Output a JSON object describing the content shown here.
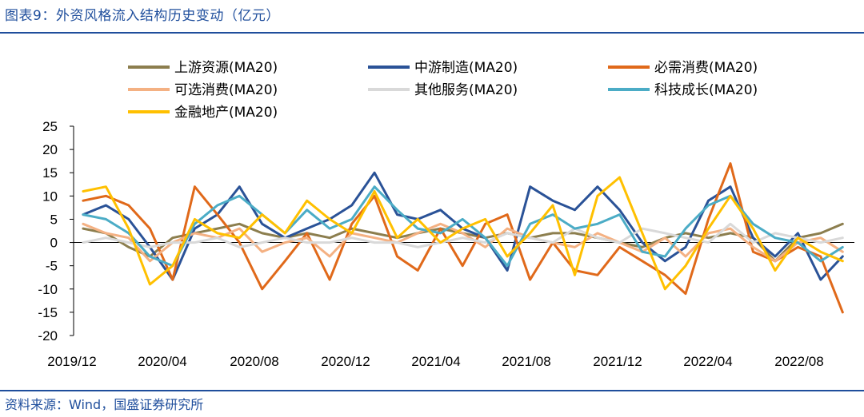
{
  "figure_title": "图表9：外资风格流入结构历史变动（亿元）",
  "source": "资料来源：Wind，国盛证券研究所",
  "chart_data": {
    "type": "line",
    "title": "",
    "xlabel": "",
    "ylabel": "",
    "ylim": [
      -20,
      25
    ],
    "yticks": [
      25,
      20,
      15,
      10,
      5,
      0,
      -5,
      -10,
      -15,
      -20
    ],
    "xticks": [
      "2019/12",
      "2020/04",
      "2020/08",
      "2020/12",
      "2021/04",
      "2021/08",
      "2021/12",
      "2022/04",
      "2022/08"
    ],
    "grid": false,
    "legend_position": "top",
    "x_range": [
      "2019-12-02",
      "2022-10-31"
    ],
    "x": [
      "2019-12",
      "2020-01",
      "2020-02",
      "2020-03",
      "2020-04",
      "2020-05",
      "2020-06",
      "2020-07",
      "2020-08",
      "2020-09",
      "2020-10",
      "2020-11",
      "2020-12",
      "2021-01",
      "2021-02",
      "2021-03",
      "2021-04",
      "2021-05",
      "2021-06",
      "2021-07",
      "2021-08",
      "2021-09",
      "2021-10",
      "2021-11",
      "2021-12",
      "2022-01",
      "2022-02",
      "2022-03",
      "2022-04",
      "2022-05",
      "2022-06",
      "2022-07",
      "2022-08",
      "2022-09",
      "2022-10"
    ],
    "series": [
      {
        "name": "上游资源(MA20)",
        "color": "#8c7e4e",
        "values": [
          3,
          2,
          -1,
          -3,
          1,
          2,
          3,
          4,
          2,
          1,
          2,
          1,
          3,
          2,
          1,
          2,
          3,
          2,
          1,
          2,
          1,
          2,
          2,
          1,
          0,
          -1,
          1,
          2,
          1,
          2,
          1,
          -4,
          1,
          2,
          4
        ]
      },
      {
        "name": "中游制造(MA20)",
        "color": "#2a5297",
        "values": [
          6,
          8,
          5,
          -1,
          -8,
          3,
          6,
          12,
          4,
          1,
          3,
          5,
          8,
          15,
          6,
          5,
          7,
          3,
          1,
          -6,
          12,
          9,
          7,
          12,
          7,
          0,
          -4,
          -1,
          9,
          12,
          1,
          -3,
          2,
          -8,
          -3
        ]
      },
      {
        "name": "必需消费(MA20)",
        "color": "#e0691a",
        "values": [
          9,
          10,
          8,
          3,
          -8,
          12,
          6,
          0,
          -10,
          -4,
          2,
          -8,
          4,
          10,
          -3,
          -6,
          3,
          -5,
          4,
          6,
          -8,
          0,
          -6,
          -7,
          -1,
          -4,
          -7,
          -11,
          5,
          17,
          -2,
          -4,
          -1,
          -3,
          -15
        ]
      },
      {
        "name": "可选消费(MA20)",
        "color": "#f4b183",
        "values": [
          4,
          2,
          1,
          -4,
          0,
          2,
          1,
          3,
          -2,
          0,
          1,
          -3,
          2,
          1,
          0,
          2,
          4,
          2,
          -1,
          3,
          1,
          0,
          -1,
          2,
          0,
          -2,
          1,
          -3,
          2,
          3,
          -1,
          -4,
          0,
          1,
          -2
        ]
      },
      {
        "name": "其他服务(MA20)",
        "color": "#d9d9d9",
        "values": [
          0,
          1,
          0,
          -1,
          0,
          0,
          1,
          -1,
          0,
          1,
          0,
          0,
          1,
          0,
          0,
          -1,
          0,
          1,
          0,
          2,
          1,
          0,
          3,
          1,
          0,
          3,
          2,
          1,
          0,
          4,
          0,
          2,
          1,
          0,
          1
        ]
      },
      {
        "name": "科技成长(MA20)",
        "color": "#4bacc6",
        "values": [
          6,
          5,
          2,
          -3,
          -5,
          4,
          8,
          10,
          6,
          2,
          7,
          3,
          5,
          12,
          7,
          3,
          2,
          5,
          1,
          -5,
          4,
          6,
          3,
          4,
          6,
          -2,
          -3,
          3,
          8,
          10,
          4,
          1,
          0,
          -4,
          -1
        ]
      },
      {
        "name": "金融地产(MA20)",
        "color": "#ffc000",
        "values": [
          11,
          12,
          3,
          -9,
          -5,
          5,
          2,
          1,
          6,
          2,
          9,
          5,
          2,
          11,
          1,
          5,
          0,
          3,
          5,
          -3,
          2,
          8,
          -7,
          10,
          14,
          2,
          -10,
          -5,
          3,
          10,
          3,
          -6,
          1,
          -2,
          -4
        ]
      }
    ]
  }
}
